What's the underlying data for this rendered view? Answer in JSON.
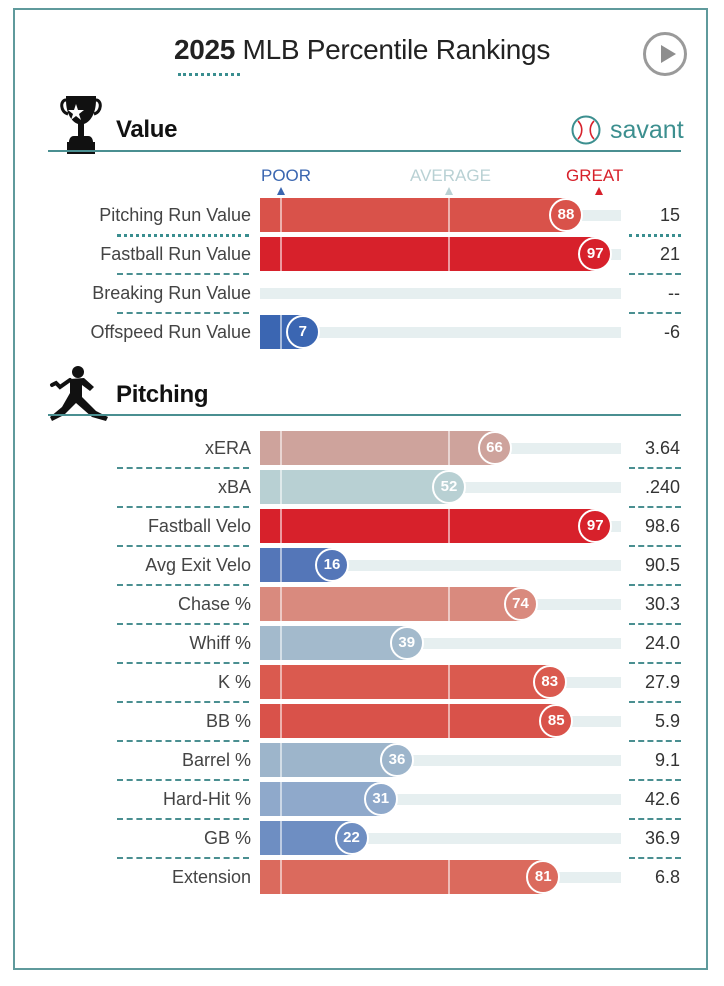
{
  "title": {
    "year": "2025",
    "rest": "MLB Percentile Rankings"
  },
  "branding": {
    "savant": "savant"
  },
  "sections": {
    "value": "Value",
    "pitching": "Pitching"
  },
  "scale": {
    "poor": "POOR",
    "average": "AVERAGE",
    "great": "GREAT"
  },
  "colors": {
    "teal": "#4a8f91",
    "poor": "#3a66b0",
    "average": "#b9d1d4",
    "great": "#d7212b"
  },
  "chart_data": [
    {
      "type": "bar",
      "title": "Value",
      "orientation": "horizontal",
      "xlim": [
        0,
        100
      ],
      "rows": [
        {
          "label": "Pitching Run Value",
          "percentile": 88,
          "value": "15",
          "color": "#d9524a"
        },
        {
          "label": "Fastball Run Value",
          "percentile": 97,
          "value": "21",
          "color": "#d7212b"
        },
        {
          "label": "Breaking Run Value",
          "percentile": null,
          "value": "--",
          "color": ""
        },
        {
          "label": "Offspeed Run Value",
          "percentile": 7,
          "value": "-6",
          "color": "#3b66b2"
        }
      ]
    },
    {
      "type": "bar",
      "title": "Pitching",
      "orientation": "horizontal",
      "xlim": [
        0,
        100
      ],
      "rows": [
        {
          "label": "xERA",
          "percentile": 66,
          "value": "3.64",
          "color": "#cea39c"
        },
        {
          "label": "xBA",
          "percentile": 52,
          "value": ".240",
          "color": "#b8d0d3"
        },
        {
          "label": "Fastball Velo",
          "percentile": 97,
          "value": "98.6",
          "color": "#d7212b"
        },
        {
          "label": "Avg Exit Velo",
          "percentile": 16,
          "value": "90.5",
          "color": "#5476b8"
        },
        {
          "label": "Chase %",
          "percentile": 74,
          "value": "30.3",
          "color": "#d98a7e"
        },
        {
          "label": "Whiff %",
          "percentile": 39,
          "value": "24.0",
          "color": "#a3bacc"
        },
        {
          "label": "K %",
          "percentile": 83,
          "value": "27.9",
          "color": "#da5a4f"
        },
        {
          "label": "BB %",
          "percentile": 85,
          "value": "5.9",
          "color": "#d9524a"
        },
        {
          "label": "Barrel %",
          "percentile": 36,
          "value": "9.1",
          "color": "#9db5cb"
        },
        {
          "label": "Hard-Hit %",
          "percentile": 31,
          "value": "42.6",
          "color": "#8fa9cb"
        },
        {
          "label": "GB %",
          "percentile": 22,
          "value": "36.9",
          "color": "#6e8ec2"
        },
        {
          "label": "Extension",
          "percentile": 81,
          "value": "6.8",
          "color": "#db6a5d"
        }
      ]
    }
  ]
}
